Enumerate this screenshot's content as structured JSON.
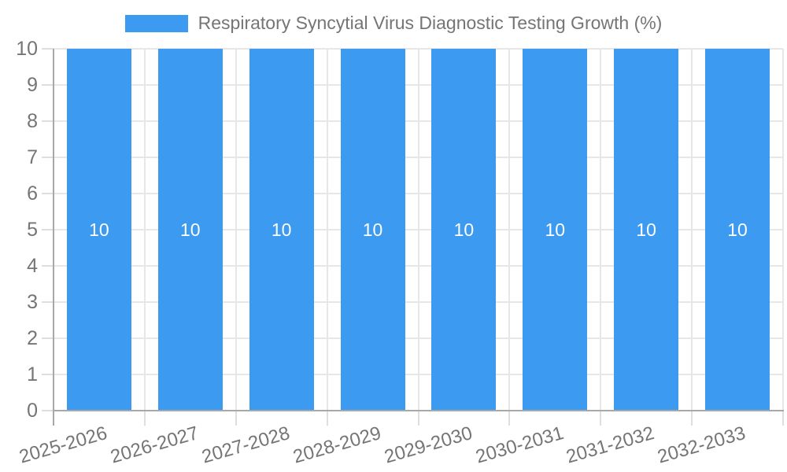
{
  "chart_data": {
    "type": "bar",
    "title": "",
    "legend_label": "Respiratory Syncytial Virus Diagnostic Testing Growth (%)",
    "legend_position": "top",
    "categories": [
      "2025-2026",
      "2026-2027",
      "2027-2028",
      "2028-2029",
      "2029-2030",
      "2030-2031",
      "2031-2032",
      "2032-2033"
    ],
    "values": [
      10,
      10,
      10,
      10,
      10,
      10,
      10,
      10
    ],
    "bar_value_labels": [
      "10",
      "10",
      "10",
      "10",
      "10",
      "10",
      "10",
      "10"
    ],
    "xlabel": "",
    "ylabel": "",
    "ylim": [
      0,
      10
    ],
    "yticks": [
      0,
      1,
      2,
      3,
      4,
      5,
      6,
      7,
      8,
      9,
      10
    ],
    "grid": true,
    "colors": {
      "bar": "#3C9AF0",
      "axis_text": "#757575",
      "legend_text": "#757575",
      "value_label_text": "#ffffff",
      "gridline": "#e7e7e7",
      "tick": "#dedede",
      "axis_line": "#a8a8a8",
      "background": "#ffffff"
    }
  }
}
